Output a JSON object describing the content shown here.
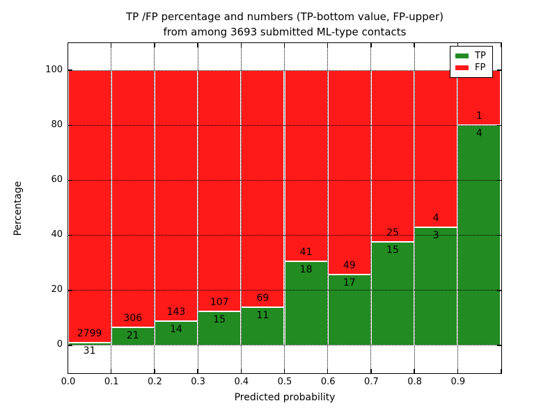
{
  "chart_data": {
    "type": "bar",
    "stacked": true,
    "title_line1": "TP /FP percentage and numbers (TP-bottom value, FP-upper)",
    "title_line2": "from among 3693 submitted ML-type contacts",
    "xlabel": "Predicted probability",
    "ylabel": "Percentage",
    "total_contacts": 3693,
    "categories": [
      "0.0-0.1",
      "0.1-0.2",
      "0.2-0.3",
      "0.3-0.4",
      "0.4-0.5",
      "0.5-0.6",
      "0.6-0.7",
      "0.7-0.8",
      "0.8-0.9",
      "0.9-1.0"
    ],
    "series": [
      {
        "name": "TP",
        "color": "#228b22",
        "values": [
          31,
          21,
          14,
          15,
          11,
          18,
          17,
          15,
          3,
          4
        ]
      },
      {
        "name": "FP",
        "color": "#ff1a1a",
        "values": [
          2799,
          306,
          143,
          107,
          69,
          41,
          49,
          25,
          4,
          1
        ]
      }
    ],
    "bar_value_meaning": "Bars show TP percentage of each bin (green, bottom) stacked with FP percentage (red, top) summing to 100%; annotations show raw counts: FP above boundary, TP below boundary",
    "x_tick_labels": [
      "0.0",
      "0.1",
      "0.2",
      "0.3",
      "0.4",
      "0.5",
      "0.6",
      "0.7",
      "0.8",
      "0.9"
    ],
    "y_ticks": [
      0,
      20,
      40,
      60,
      80,
      100
    ],
    "y_tick_labels": [
      "0",
      "20",
      "40",
      "60",
      "80",
      "100"
    ],
    "xlim": [
      0,
      1
    ],
    "ylim": [
      -10,
      110
    ],
    "grid": true,
    "grid_style": "dotted",
    "legend_position": "upper right",
    "legend": [
      {
        "label": "TP",
        "color": "#228b22"
      },
      {
        "label": "FP",
        "color": "#ff1a1a"
      }
    ]
  },
  "colors": {
    "tp_green": "#228b22",
    "fp_red": "#ff1a1a",
    "grid_black": "#000000",
    "background": "#ffffff"
  }
}
